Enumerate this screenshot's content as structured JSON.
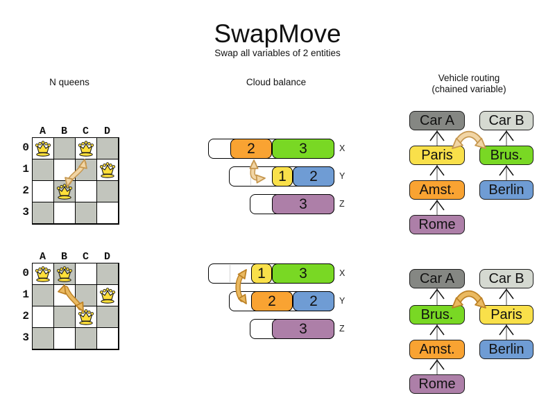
{
  "title": "SwapMove",
  "subtitle": "Swap all variables of 2 entities",
  "columns": {
    "nqueens": {
      "label": "N queens"
    },
    "cloud": {
      "label": "Cloud balance"
    },
    "vehicle": {
      "label": "Vehicle routing",
      "sublabel": "(chained variable)"
    }
  },
  "nqueens": {
    "col_labels": [
      "A",
      "B",
      "C",
      "D"
    ],
    "row_labels": [
      "0",
      "1",
      "2",
      "3"
    ],
    "before": {
      "queens": [
        {
          "col": "A",
          "row": 0
        },
        {
          "col": "C",
          "row": 0
        },
        {
          "col": "D",
          "row": 1
        },
        {
          "col": "B",
          "row": 2
        }
      ]
    },
    "after": {
      "queens": [
        {
          "col": "A",
          "row": 0
        },
        {
          "col": "B",
          "row": 0
        },
        {
          "col": "D",
          "row": 1
        },
        {
          "col": "C",
          "row": 2
        }
      ]
    }
  },
  "cloud": {
    "before": {
      "rows": [
        {
          "label": "X",
          "capacity": 6,
          "blocks": [
            {
              "value": "2",
              "color": "orange"
            },
            {
              "value": "3",
              "color": "green"
            }
          ]
        },
        {
          "label": "Y",
          "capacity": 5,
          "blocks": [
            {
              "value": "1",
              "color": "yellow"
            },
            {
              "value": "2",
              "color": "blue"
            }
          ]
        },
        {
          "label": "Z",
          "capacity": 4,
          "blocks": [
            {
              "value": "3",
              "color": "purple"
            }
          ]
        }
      ]
    },
    "after": {
      "rows": [
        {
          "label": "X",
          "capacity": 6,
          "blocks": [
            {
              "value": "1",
              "color": "yellow"
            },
            {
              "value": "3",
              "color": "green"
            }
          ]
        },
        {
          "label": "Y",
          "capacity": 5,
          "blocks": [
            {
              "value": "2",
              "color": "orange"
            },
            {
              "value": "2",
              "color": "blue"
            }
          ]
        },
        {
          "label": "Z",
          "capacity": 4,
          "blocks": [
            {
              "value": "3",
              "color": "purple"
            }
          ]
        }
      ]
    }
  },
  "vehicle": {
    "before": {
      "chains": [
        {
          "nodes": [
            {
              "label": "Car A",
              "color": "darkgray"
            },
            {
              "label": "Paris",
              "color": "yellow"
            },
            {
              "label": "Amst.",
              "color": "orange"
            },
            {
              "label": "Rome",
              "color": "purple"
            }
          ]
        },
        {
          "nodes": [
            {
              "label": "Car B",
              "color": "lightgray"
            },
            {
              "label": "Brus.",
              "color": "green"
            },
            {
              "label": "Berlin",
              "color": "blue"
            }
          ]
        }
      ]
    },
    "after": {
      "chains": [
        {
          "nodes": [
            {
              "label": "Car A",
              "color": "darkgray"
            },
            {
              "label": "Brus.",
              "color": "green"
            },
            {
              "label": "Amst.",
              "color": "orange"
            },
            {
              "label": "Rome",
              "color": "purple"
            }
          ]
        },
        {
          "nodes": [
            {
              "label": "Car B",
              "color": "lightgray"
            },
            {
              "label": "Paris",
              "color": "yellow"
            },
            {
              "label": "Berlin",
              "color": "blue"
            }
          ]
        }
      ]
    }
  },
  "colors": {
    "orange": "#F9A332",
    "green": "#79D824",
    "yellow": "#F9E04A",
    "blue": "#6F9CD4",
    "purple": "#AD7FA8",
    "darkgray": "#858783",
    "lightgray": "#D5D9D1",
    "board_gray": "#C2C5BD",
    "queen_gold": "#FFDF3A",
    "arrow_before_fill": "#F1D5A5",
    "arrow_before_stroke": "#C6974F",
    "arrow_after_fill": "#EAB960",
    "arrow_after_stroke": "#BD8226",
    "chain_line": "#8A8A8A"
  }
}
